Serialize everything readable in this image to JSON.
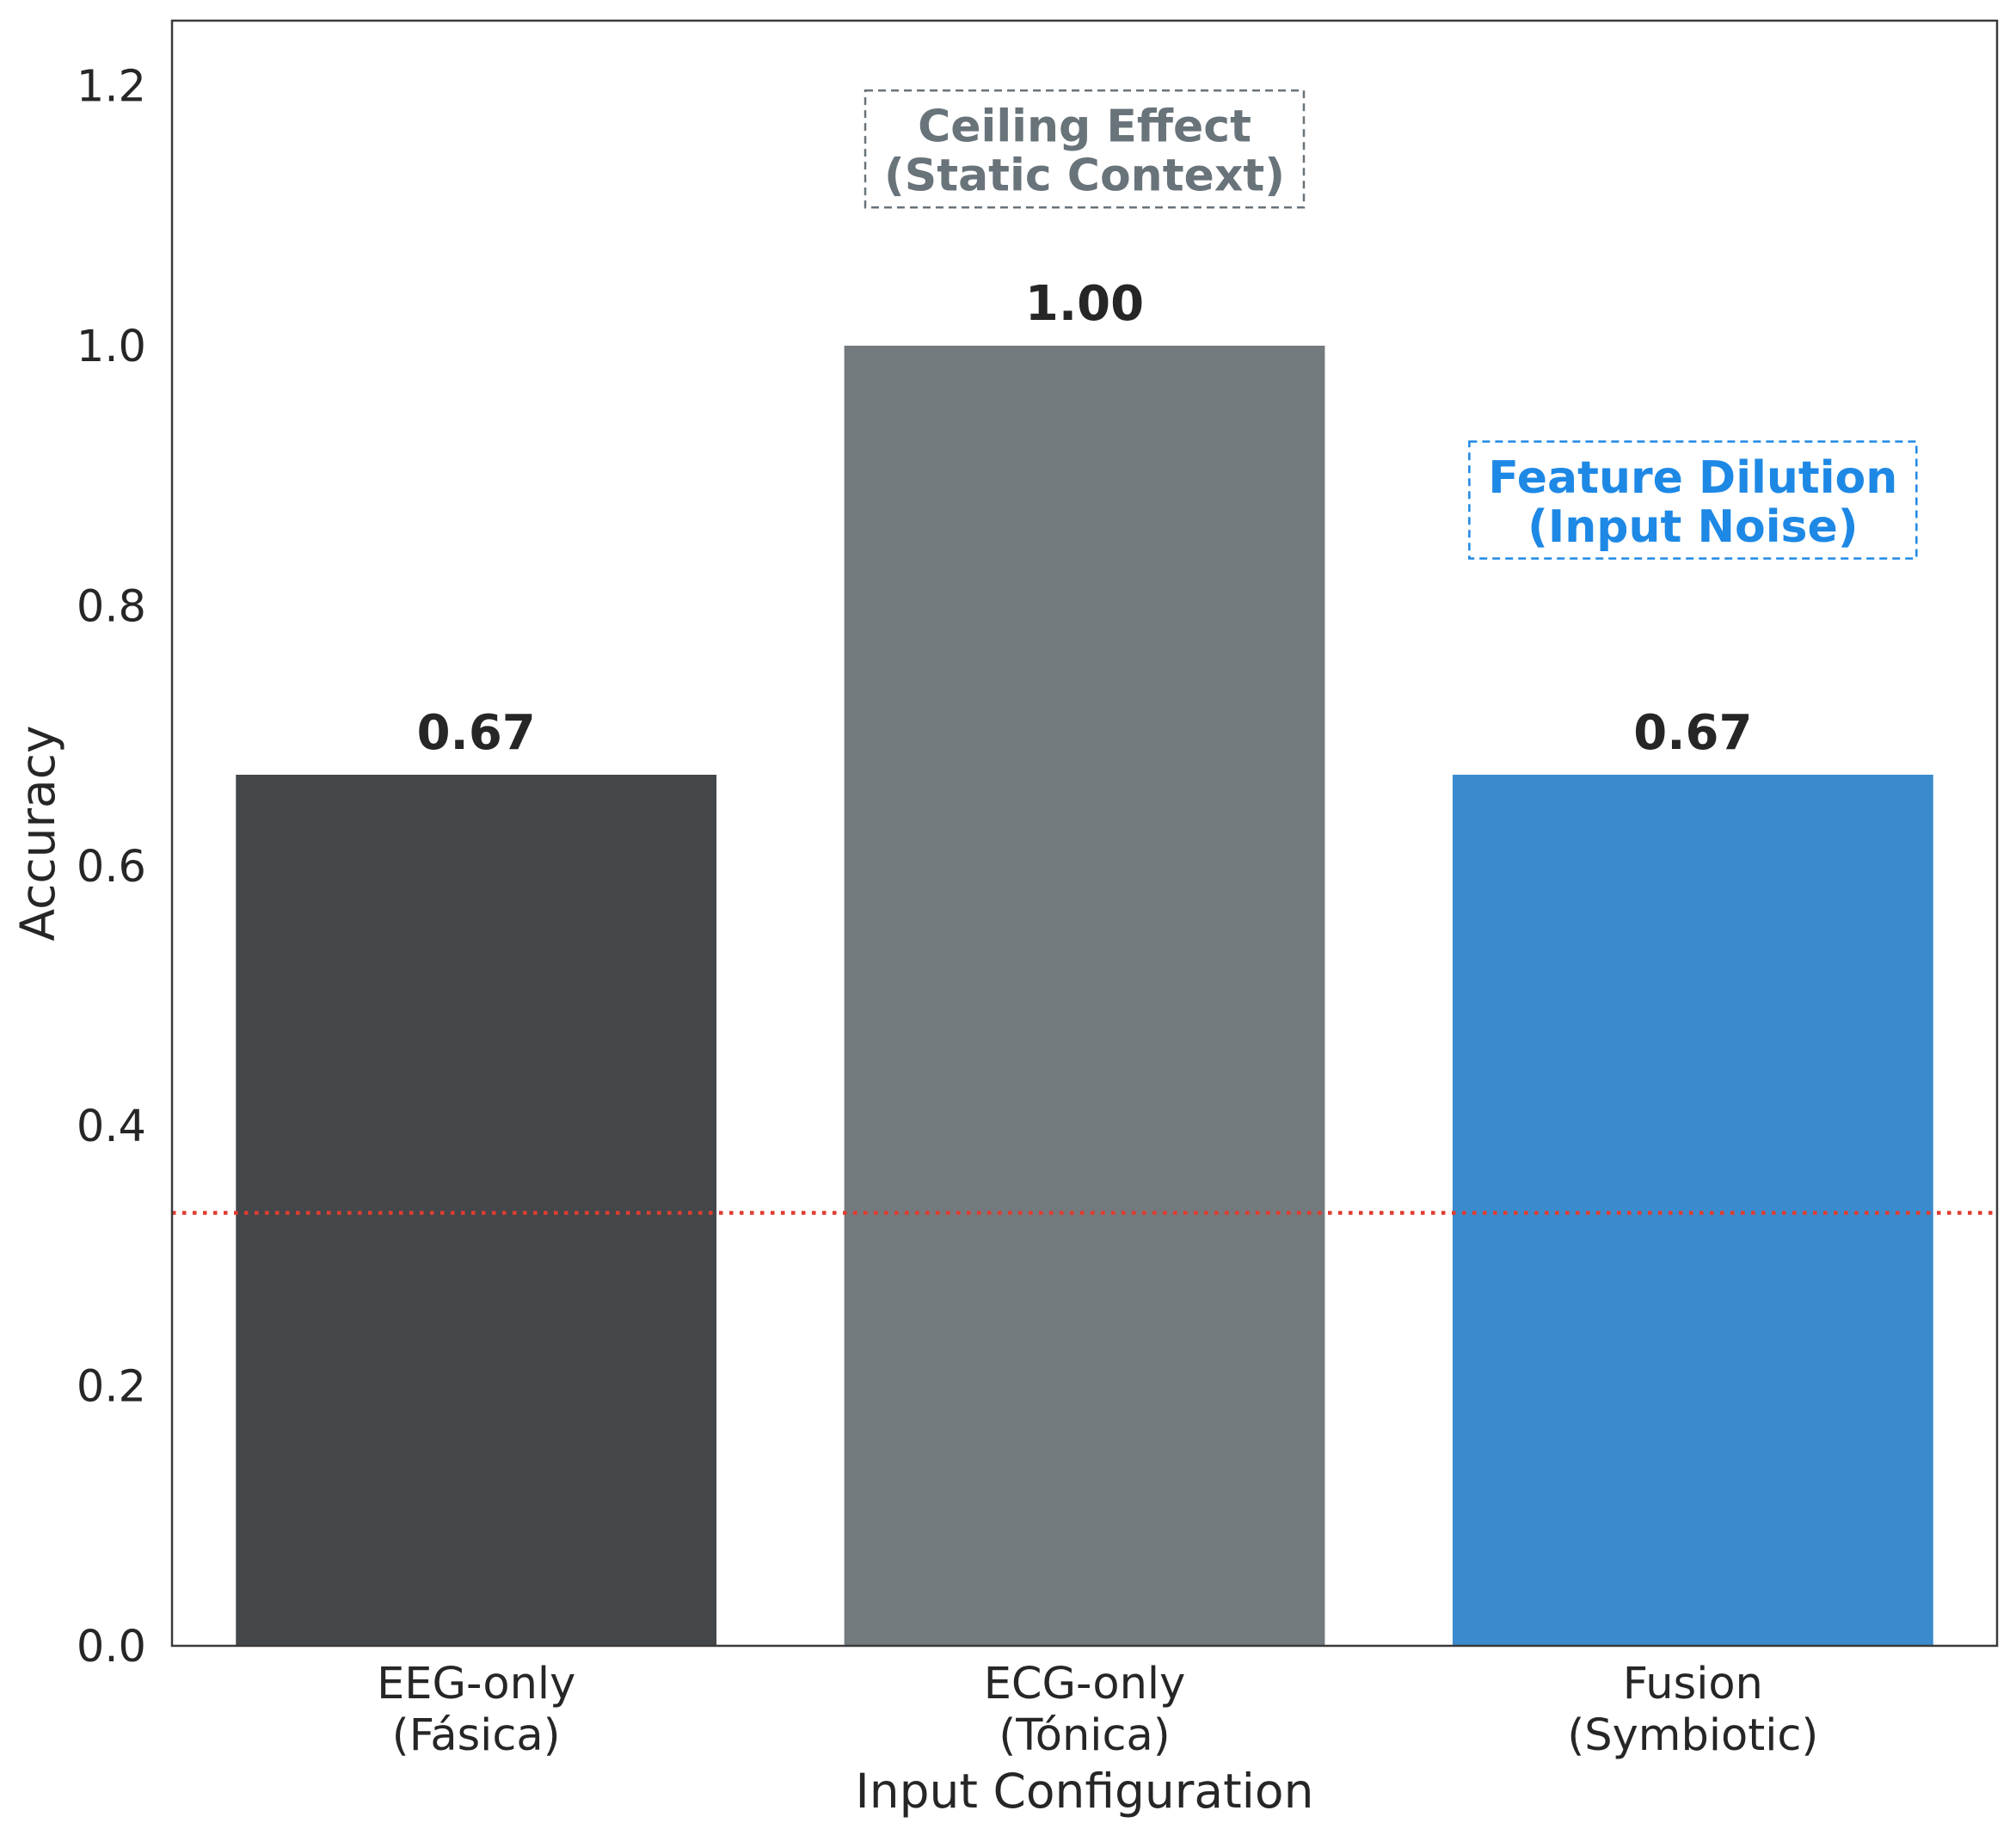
{
  "chart_data": {
    "type": "bar",
    "categories": [
      [
        "EEG-only",
        "(Fásica)"
      ],
      [
        "ECG-only",
        "(Tónica)"
      ],
      [
        "Fusion",
        "(Symbiotic)"
      ]
    ],
    "values": [
      0.67,
      1.0,
      0.67
    ],
    "value_labels": [
      "0.67",
      "1.00",
      "0.67"
    ],
    "bar_colors": [
      "#44474a",
      "#737a7e",
      "#3a8bcd"
    ],
    "title": "",
    "xlabel": "Input Configuration",
    "ylabel": "Accuracy",
    "ylim": [
      0,
      1.25
    ],
    "yticks": [
      0.0,
      0.2,
      0.4,
      0.6,
      0.8,
      1.0,
      1.2
    ],
    "ytick_labels": [
      "0.0",
      "0.2",
      "0.4",
      "0.6",
      "0.8",
      "1.0",
      "1.2"
    ],
    "grid": false,
    "reference_line": {
      "y": 0.333,
      "style": "dotted",
      "color": "#e03c31"
    },
    "annotations": [
      {
        "lines": [
          "Ceiling Effect",
          "(Static Context)"
        ],
        "category_index": 1,
        "y": 1.15,
        "color": "#68737a",
        "box": "dashed"
      },
      {
        "lines": [
          "Feature Dilution",
          "(Input Noise)"
        ],
        "category_index": 2,
        "y": 0.88,
        "color": "#1e88e5",
        "box": "dashed"
      }
    ]
  }
}
